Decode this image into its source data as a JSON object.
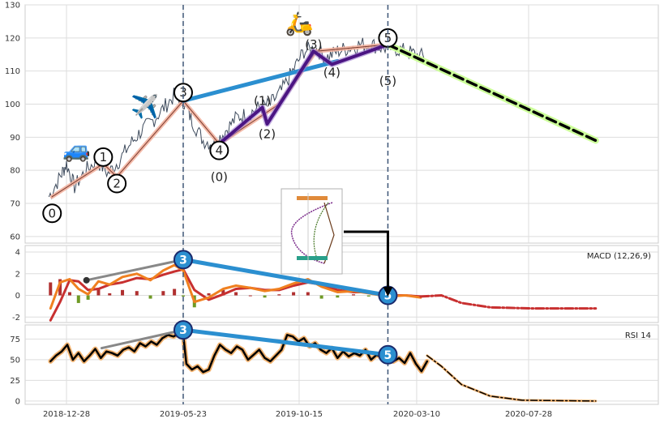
{
  "chart_data": {
    "type": "line",
    "x_axis": {
      "tick_labels": [
        "2018-12-28",
        "2019-05-23",
        "2019-10-15",
        "2020-03-10",
        "2020-07-28"
      ]
    },
    "vertical_markers": [
      "2019-05-23",
      "2020-02-03"
    ],
    "price_panel": {
      "ylim": [
        58,
        130
      ],
      "yticks": [
        60,
        70,
        80,
        90,
        100,
        110,
        120,
        130
      ],
      "series_price": [
        [
          "2018-12-06",
          72
        ],
        [
          "2018-12-20",
          78
        ],
        [
          "2018-12-28",
          82
        ],
        [
          "2019-01-07",
          75
        ],
        [
          "2019-01-21",
          80
        ],
        [
          "2019-02-04",
          83
        ],
        [
          "2019-02-18",
          79
        ],
        [
          "2019-03-04",
          83
        ],
        [
          "2019-03-18",
          88
        ],
        [
          "2019-04-01",
          92
        ],
        [
          "2019-04-15",
          95
        ],
        [
          "2019-04-29",
          99
        ],
        [
          "2019-05-13",
          103
        ],
        [
          "2019-05-23",
          101
        ],
        [
          "2019-06-03",
          95
        ],
        [
          "2019-06-17",
          89
        ],
        [
          "2019-07-01",
          88
        ],
        [
          "2019-07-15",
          92
        ],
        [
          "2019-07-29",
          96
        ],
        [
          "2019-08-12",
          97
        ],
        [
          "2019-08-26",
          99
        ],
        [
          "2019-09-09",
          100
        ],
        [
          "2019-09-23",
          104
        ],
        [
          "2019-10-07",
          110
        ],
        [
          "2019-10-21",
          116
        ],
        [
          "2019-11-04",
          117
        ],
        [
          "2019-11-18",
          114
        ],
        [
          "2019-12-02",
          116
        ],
        [
          "2019-12-16",
          117
        ],
        [
          "2019-12-30",
          118
        ],
        [
          "2020-01-13",
          118
        ],
        [
          "2020-01-27",
          117
        ],
        [
          "2020-02-10",
          117
        ],
        [
          "2020-02-24",
          116
        ],
        [
          "2020-03-09",
          115
        ],
        [
          "2020-03-23",
          114
        ]
      ],
      "wave_path": [
        [
          "2018-12-10",
          72
        ],
        [
          "2019-02-12",
          82
        ],
        [
          "2019-03-01",
          78
        ],
        [
          "2019-05-23",
          101
        ],
        [
          "2019-07-07",
          88
        ],
        [
          "2019-09-20",
          100
        ],
        [
          "2019-11-05",
          116
        ],
        [
          "2020-02-03",
          118
        ]
      ],
      "wave_labels": [
        {
          "x": "2018-12-10",
          "y": 67,
          "text": "0",
          "circle": true
        },
        {
          "x": "2019-02-12",
          "y": 84,
          "text": "1",
          "circle": true
        },
        {
          "x": "2019-03-01",
          "y": 76,
          "text": "2",
          "circle": true
        },
        {
          "x": "2019-05-23",
          "y": 103.5,
          "text": "3",
          "circle": true
        },
        {
          "x": "2019-07-07",
          "y": 86,
          "text": "4",
          "circle": true
        },
        {
          "x": "2020-02-03",
          "y": 120,
          "text": "5",
          "circle": true
        },
        {
          "x": "2019-07-07",
          "y": 78,
          "text": "(0)",
          "circle": false
        },
        {
          "x": "2019-08-30",
          "y": 101,
          "text": "(1)",
          "circle": false
        },
        {
          "x": "2019-09-05",
          "y": 91,
          "text": "(2)",
          "circle": false
        },
        {
          "x": "2019-11-02",
          "y": 118,
          "text": "(3)",
          "circle": false
        },
        {
          "x": "2019-11-25",
          "y": 109.5,
          "text": "(4)",
          "circle": false
        },
        {
          "x": "2020-02-03",
          "y": 107,
          "text": "(5)",
          "circle": false
        }
      ],
      "sub_wave": [
        [
          "2019-07-07",
          88
        ],
        [
          "2019-08-30",
          99
        ],
        [
          "2019-09-05",
          94
        ],
        [
          "2019-11-02",
          116
        ],
        [
          "2019-11-25",
          112
        ],
        [
          "2020-02-03",
          118
        ]
      ],
      "trend_line": [
        [
          "2019-05-23",
          101
        ],
        [
          "2019-12-02",
          113
        ]
      ],
      "forecast": [
        [
          "2020-02-03",
          118
        ],
        [
          "2020-10-20",
          89
        ]
      ],
      "icons": [
        {
          "name": "car-icon",
          "glyph": "🚙",
          "x": "2019-01-10",
          "y": 84
        },
        {
          "name": "airplane-icon",
          "glyph": "✈️",
          "x": "2019-04-05",
          "y": 97
        },
        {
          "name": "scooter-icon",
          "glyph": "🛵",
          "x": "2019-10-15",
          "y": 122
        }
      ]
    },
    "macd_panel": {
      "label": "MACD (12,26,9)",
      "ylim": [
        -2.5,
        4.6
      ],
      "yticks": [
        -2,
        0,
        2,
        4
      ],
      "macd": [
        [
          "2018-12-08",
          -1.2
        ],
        [
          "2018-12-20",
          1.2
        ],
        [
          "2019-01-01",
          1.5
        ],
        [
          "2019-01-12",
          0.6
        ],
        [
          "2019-01-24",
          0.1
        ],
        [
          "2019-02-06",
          1.3
        ],
        [
          "2019-02-20",
          1.0
        ],
        [
          "2019-03-08",
          1.7
        ],
        [
          "2019-03-26",
          2.0
        ],
        [
          "2019-04-12",
          1.4
        ],
        [
          "2019-04-28",
          2.3
        ],
        [
          "2019-05-12",
          2.8
        ],
        [
          "2019-05-23",
          2.3
        ],
        [
          "2019-06-06",
          -0.6
        ],
        [
          "2019-06-24",
          -0.2
        ],
        [
          "2019-07-12",
          0.6
        ],
        [
          "2019-07-28",
          0.9
        ],
        [
          "2019-08-15",
          0.7
        ],
        [
          "2019-09-02",
          0.4
        ],
        [
          "2019-09-20",
          0.6
        ],
        [
          "2019-10-08",
          1.1
        ],
        [
          "2019-10-26",
          1.5
        ],
        [
          "2019-11-12",
          0.8
        ],
        [
          "2019-12-02",
          0.3
        ],
        [
          "2019-12-22",
          0.4
        ],
        [
          "2020-01-10",
          0.2
        ],
        [
          "2020-02-03",
          -0.1
        ],
        [
          "2020-02-25",
          0.0
        ],
        [
          "2020-03-15",
          -0.2
        ]
      ],
      "signal": [
        [
          "2018-12-08",
          -2.3
        ],
        [
          "2018-12-20",
          -0.6
        ],
        [
          "2019-01-01",
          1.4
        ],
        [
          "2019-01-12",
          1.3
        ],
        [
          "2019-01-24",
          0.5
        ],
        [
          "2019-02-06",
          0.6
        ],
        [
          "2019-02-20",
          1.0
        ],
        [
          "2019-03-08",
          1.2
        ],
        [
          "2019-03-26",
          1.6
        ],
        [
          "2019-04-12",
          1.5
        ],
        [
          "2019-04-28",
          1.9
        ],
        [
          "2019-05-12",
          2.2
        ],
        [
          "2019-05-23",
          2.4
        ],
        [
          "2019-06-06",
          0.5
        ],
        [
          "2019-06-24",
          -0.4
        ],
        [
          "2019-07-12",
          0.1
        ],
        [
          "2019-07-28",
          0.6
        ],
        [
          "2019-08-15",
          0.7
        ],
        [
          "2019-09-02",
          0.5
        ],
        [
          "2019-09-20",
          0.5
        ],
        [
          "2019-10-08",
          0.9
        ],
        [
          "2019-10-26",
          1.2
        ],
        [
          "2019-11-12",
          1.0
        ],
        [
          "2019-12-02",
          0.5
        ],
        [
          "2019-12-22",
          0.3
        ],
        [
          "2020-01-10",
          0.3
        ],
        [
          "2020-02-03",
          0.0
        ],
        [
          "2020-02-25",
          0.0
        ],
        [
          "2020-03-15",
          -0.1
        ]
      ],
      "histogram": [
        [
          "2018-12-08",
          1.2
        ],
        [
          "2018-12-20",
          1.5
        ],
        [
          "2019-01-01",
          0.3
        ],
        [
          "2019-01-12",
          -0.7
        ],
        [
          "2019-01-24",
          -0.4
        ],
        [
          "2019-02-06",
          0.7
        ],
        [
          "2019-02-20",
          0.2
        ],
        [
          "2019-03-08",
          0.5
        ],
        [
          "2019-03-26",
          0.4
        ],
        [
          "2019-04-12",
          -0.3
        ],
        [
          "2019-04-28",
          0.4
        ],
        [
          "2019-05-12",
          0.6
        ],
        [
          "2019-05-23",
          -0.1
        ],
        [
          "2019-06-06",
          -1.1
        ],
        [
          "2019-06-24",
          0.2
        ],
        [
          "2019-07-12",
          0.5
        ],
        [
          "2019-07-28",
          0.3
        ],
        [
          "2019-08-15",
          0.0
        ],
        [
          "2019-09-02",
          -0.2
        ],
        [
          "2019-09-20",
          0.1
        ],
        [
          "2019-10-08",
          0.3
        ],
        [
          "2019-10-26",
          0.3
        ],
        [
          "2019-11-12",
          -0.3
        ],
        [
          "2019-12-02",
          -0.2
        ],
        [
          "2019-12-22",
          0.1
        ],
        [
          "2020-01-10",
          -0.1
        ],
        [
          "2020-02-03",
          -0.1
        ],
        [
          "2020-02-25",
          0.0
        ],
        [
          "2020-03-15",
          -0.1
        ]
      ],
      "forecast": [
        [
          "2020-03-15",
          -0.1
        ],
        [
          "2020-04-10",
          0.0
        ],
        [
          "2020-05-05",
          -0.7
        ],
        [
          "2020-06-10",
          -1.1
        ],
        [
          "2020-08-01",
          -1.2
        ],
        [
          "2020-10-20",
          -1.2
        ]
      ],
      "divergence": [
        [
          "2019-05-23",
          3.3
        ],
        [
          "2020-02-03",
          0.0
        ]
      ],
      "gray_line": [
        [
          "2019-01-22",
          1.4
        ],
        [
          "2019-05-23",
          3.3
        ]
      ]
    },
    "rsi_panel": {
      "label": "RSI 14",
      "ylim": [
        -4,
        92
      ],
      "yticks": [
        0,
        25,
        50,
        75
      ],
      "rsi": [
        [
          "2018-12-08",
          48
        ],
        [
          "2018-12-15",
          55
        ],
        [
          "2018-12-22",
          60
        ],
        [
          "2018-12-29",
          68
        ],
        [
          "2019-01-05",
          50
        ],
        [
          "2019-01-12",
          58
        ],
        [
          "2019-01-19",
          48
        ],
        [
          "2019-01-26",
          55
        ],
        [
          "2019-02-02",
          63
        ],
        [
          "2019-02-09",
          52
        ],
        [
          "2019-02-16",
          60
        ],
        [
          "2019-02-23",
          58
        ],
        [
          "2019-03-02",
          55
        ],
        [
          "2019-03-09",
          62
        ],
        [
          "2019-03-16",
          65
        ],
        [
          "2019-03-23",
          60
        ],
        [
          "2019-03-30",
          70
        ],
        [
          "2019-04-06",
          66
        ],
        [
          "2019-04-13",
          72
        ],
        [
          "2019-04-20",
          68
        ],
        [
          "2019-04-27",
          76
        ],
        [
          "2019-05-04",
          80
        ],
        [
          "2019-05-11",
          78
        ],
        [
          "2019-05-18",
          82
        ],
        [
          "2019-05-23",
          80
        ],
        [
          "2019-05-27",
          45
        ],
        [
          "2019-06-03",
          38
        ],
        [
          "2019-06-10",
          42
        ],
        [
          "2019-06-17",
          35
        ],
        [
          "2019-06-24",
          38
        ],
        [
          "2019-07-01",
          55
        ],
        [
          "2019-07-08",
          68
        ],
        [
          "2019-07-15",
          62
        ],
        [
          "2019-07-22",
          58
        ],
        [
          "2019-07-29",
          66
        ],
        [
          "2019-08-05",
          62
        ],
        [
          "2019-08-12",
          50
        ],
        [
          "2019-08-19",
          56
        ],
        [
          "2019-08-26",
          62
        ],
        [
          "2019-09-02",
          52
        ],
        [
          "2019-09-09",
          48
        ],
        [
          "2019-09-16",
          55
        ],
        [
          "2019-09-23",
          62
        ],
        [
          "2019-09-30",
          80
        ],
        [
          "2019-10-07",
          78
        ],
        [
          "2019-10-14",
          72
        ],
        [
          "2019-10-21",
          76
        ],
        [
          "2019-10-28",
          66
        ],
        [
          "2019-11-04",
          70
        ],
        [
          "2019-11-11",
          62
        ],
        [
          "2019-11-18",
          58
        ],
        [
          "2019-11-25",
          64
        ],
        [
          "2019-12-02",
          52
        ],
        [
          "2019-12-09",
          60
        ],
        [
          "2019-12-16",
          54
        ],
        [
          "2019-12-23",
          58
        ],
        [
          "2019-12-30",
          55
        ],
        [
          "2020-01-06",
          62
        ],
        [
          "2020-01-13",
          50
        ],
        [
          "2020-01-20",
          56
        ],
        [
          "2020-01-27",
          52
        ],
        [
          "2020-02-03",
          55
        ],
        [
          "2020-02-10",
          48
        ],
        [
          "2020-02-17",
          52
        ],
        [
          "2020-02-24",
          46
        ],
        [
          "2020-03-02",
          58
        ],
        [
          "2020-03-09",
          45
        ],
        [
          "2020-03-16",
          36
        ],
        [
          "2020-03-23",
          48
        ]
      ],
      "forecast": [
        [
          "2020-03-23",
          55
        ],
        [
          "2020-04-10",
          42
        ],
        [
          "2020-05-05",
          20
        ],
        [
          "2020-06-10",
          6
        ],
        [
          "2020-07-20",
          1
        ],
        [
          "2020-10-20",
          0
        ]
      ],
      "divergence": [
        [
          "2019-05-23",
          86
        ],
        [
          "2020-02-03",
          56
        ]
      ],
      "gray_line": [
        [
          "2019-02-10",
          64
        ],
        [
          "2019-05-23",
          86
        ]
      ]
    },
    "badges": [
      {
        "panel": "macd",
        "text": "3",
        "x": "2019-05-23",
        "y": 3.3
      },
      {
        "panel": "macd",
        "text": "5",
        "x": "2020-02-03",
        "y": 0.0
      },
      {
        "panel": "rsi",
        "text": "3",
        "x": "2019-05-23",
        "y": 86
      },
      {
        "panel": "rsi",
        "text": "5",
        "x": "2020-02-03",
        "y": 56
      }
    ],
    "colors": {
      "price": "#3d4a5c",
      "wave": "#f2b3a0",
      "sub_wave": "#4b1583",
      "trend": "#2b8fd0",
      "forecast": "#000000",
      "forecast_glow": "#ccff99",
      "macd": "#f08020",
      "signal": "#c83030",
      "hist_pos": "#b03030",
      "hist_neg": "#6f9a25",
      "badge": "#2b8fd0",
      "marker": "#3d5576",
      "rsi": "#000000",
      "rsi_glow": "#f2b370"
    }
  }
}
